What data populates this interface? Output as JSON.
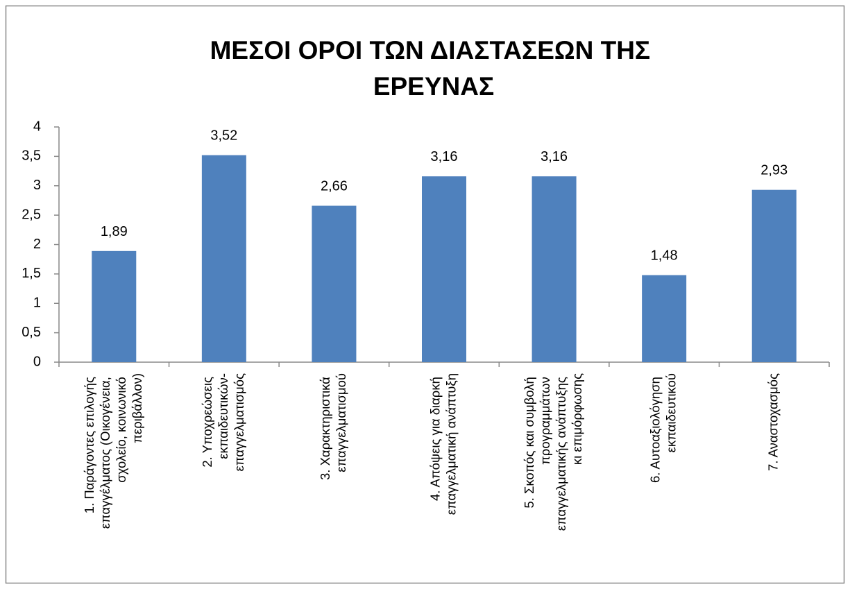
{
  "chart_data": {
    "type": "bar",
    "title": "ΜΕΣΟΙ ΟΡΟΙ ΤΩΝ ΔΙΑΣΤΑΣΕΩΝ ΤΗΣ ΕΡΕΥΝΑΣ",
    "categories": [
      "1. Παράγοντες επιλογής επαγγέλματος (Οικογένεια, σχολείο, κοινωνικό περιβάλλον)",
      "2. Υποχρεώσεις εκπαιδευτικών-επαγγελματισμός",
      "3. Χαρακτηριστικά επαγγελματισμού",
      "4. Απόψεις για διαρκή επαγγελματική ανάπτυξη",
      "5. Σκοπός και συμβολή προγραμμάτων επαγγελματικής ανάπτυξης κι επιμόρφωσης",
      "6. Αυτοαξιολόγηση εκπαιδευτικού",
      "7. Αναστοχασμός"
    ],
    "values": [
      1.89,
      3.52,
      2.66,
      3.16,
      3.16,
      1.48,
      2.93
    ],
    "value_labels": [
      "1,89",
      "3,52",
      "2,66",
      "3,16",
      "3,16",
      "1,48",
      "2,93"
    ],
    "color": "#4f81bd",
    "ylim": [
      0,
      4
    ],
    "yticks": [
      0,
      {
        "value": 0.5,
        "label": "0,5"
      },
      1,
      {
        "value": 1.5,
        "label": "1,5"
      },
      2,
      {
        "value": 2.5,
        "label": "2,5"
      },
      3,
      {
        "value": 3.5,
        "label": "3,5"
      },
      4
    ],
    "grid": false
  }
}
